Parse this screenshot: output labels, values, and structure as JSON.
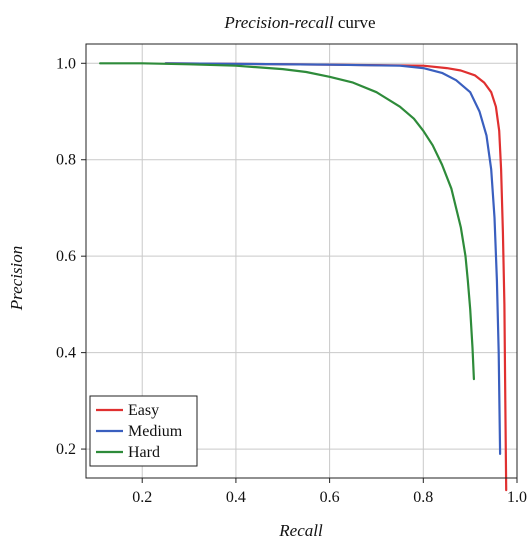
{
  "chart_data": {
    "type": "line",
    "title_italic": "Precision-recall",
    "title_rest": " curve",
    "xlabel": "Recall",
    "ylabel": "Precision",
    "xlim": [
      0.08,
      1.0
    ],
    "ylim": [
      0.14,
      1.04
    ],
    "xticks": [
      0.2,
      0.4,
      0.6,
      0.8,
      1.0
    ],
    "xtick_labels": [
      "0.2",
      "0.4",
      "0.6",
      "0.8",
      "1.0"
    ],
    "yticks": [
      0.2,
      0.4,
      0.6,
      0.8,
      1.0
    ],
    "ytick_labels": [
      "0.2",
      "0.4",
      "0.6",
      "0.8",
      "1.0"
    ],
    "grid": true,
    "legend_position": "lower-left",
    "series": [
      {
        "name": "Easy",
        "color": "#e03030",
        "x": [
          0.25,
          0.4,
          0.6,
          0.8,
          0.85,
          0.88,
          0.91,
          0.93,
          0.945,
          0.955,
          0.962,
          0.966,
          0.97,
          0.973,
          0.975,
          0.977
        ],
        "y": [
          1.0,
          0.999,
          0.997,
          0.995,
          0.99,
          0.985,
          0.975,
          0.96,
          0.94,
          0.91,
          0.86,
          0.78,
          0.65,
          0.5,
          0.3,
          0.115
        ]
      },
      {
        "name": "Medium",
        "color": "#3a5fbf",
        "x": [
          0.25,
          0.4,
          0.6,
          0.75,
          0.8,
          0.84,
          0.87,
          0.9,
          0.92,
          0.935,
          0.945,
          0.952,
          0.957,
          0.961,
          0.964
        ],
        "y": [
          1.0,
          0.999,
          0.997,
          0.995,
          0.99,
          0.98,
          0.965,
          0.94,
          0.9,
          0.85,
          0.78,
          0.68,
          0.55,
          0.4,
          0.19
        ]
      },
      {
        "name": "Hard",
        "color": "#2e8b3a",
        "x": [
          0.11,
          0.2,
          0.3,
          0.4,
          0.5,
          0.55,
          0.6,
          0.65,
          0.7,
          0.75,
          0.78,
          0.8,
          0.82,
          0.84,
          0.86,
          0.87,
          0.88,
          0.89,
          0.895,
          0.9,
          0.905,
          0.908
        ],
        "y": [
          1.0,
          1.0,
          0.998,
          0.995,
          0.988,
          0.982,
          0.972,
          0.96,
          0.94,
          0.91,
          0.885,
          0.86,
          0.83,
          0.79,
          0.74,
          0.7,
          0.66,
          0.6,
          0.55,
          0.49,
          0.41,
          0.345
        ]
      }
    ]
  }
}
